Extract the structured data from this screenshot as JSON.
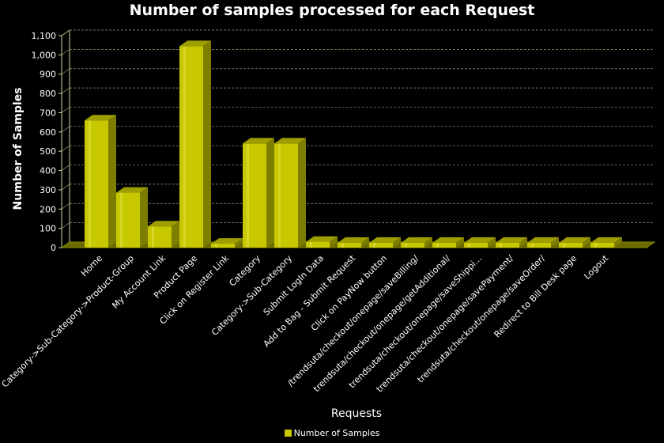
{
  "chart_data": {
    "type": "bar",
    "title": "Number of samples processed for each Request",
    "xlabel": "Requests",
    "ylabel": "Number of Samples",
    "ylim": [
      0,
      1100
    ],
    "yticks": [
      "0",
      "100",
      "200",
      "300",
      "400",
      "500",
      "600",
      "700",
      "800",
      "900",
      "1,000",
      "1,100"
    ],
    "grid": true,
    "legend_position": "bottom",
    "categories": [
      "Home",
      "Category->Sub-Category->Product-Group",
      "My Account Link",
      "Product Page",
      "Click on Register Link",
      "Category",
      "Category->Sub-Category",
      "Submit LogIn Data",
      "Add to Bag - Submit Request",
      "Click on PayNow button",
      "/trendsuta/checkout/onepage/saveBilling/",
      "trendsuta/checkout/onepage/getAdditional/",
      "trendsuta/checkout/onepage/saveShippi...",
      "trendsuta/checkout/onepage/savePayment/",
      "trendsuta/checkout/onepage/saveOrder/",
      "Redirect to Bill Desk page",
      "Logout"
    ],
    "series": [
      {
        "name": "Number of Samples",
        "color": "#c8c800",
        "values": [
          660,
          285,
          110,
          1045,
          20,
          540,
          540,
          30,
          25,
          25,
          25,
          25,
          25,
          25,
          25,
          25,
          25
        ]
      }
    ]
  }
}
